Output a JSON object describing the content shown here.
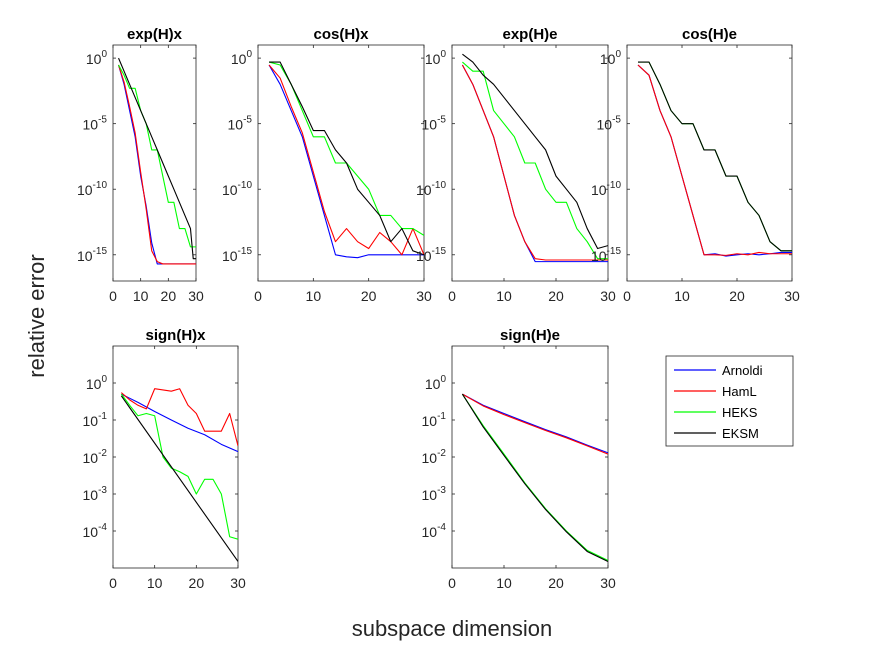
{
  "figure": {
    "ylabel": "relative error",
    "xlabel": "subspace dimension"
  },
  "legend": {
    "entries": [
      {
        "name": "Arnoldi",
        "color": "#0000ff"
      },
      {
        "name": "HamL",
        "color": "#ff0000"
      },
      {
        "name": "HEKS",
        "color": "#00ff00"
      },
      {
        "name": "EKSM",
        "color": "#000000"
      }
    ]
  },
  "chart_data": [
    {
      "type": "line",
      "title": "exp(H)x",
      "yscale": "log",
      "xlim": [
        0,
        30
      ],
      "ylim": [
        1e-17,
        10
      ],
      "xticks": [
        0,
        10,
        20,
        30
      ],
      "yticks": [
        1,
        1e-05,
        1e-10,
        1e-15
      ],
      "ytick_exponents": [
        "0",
        "-5",
        "-10",
        "-15"
      ],
      "series": [
        {
          "name": "Arnoldi",
          "x": [
            2,
            4,
            6,
            8,
            10,
            12,
            14,
            16,
            18,
            20,
            22,
            24,
            26,
            28,
            30
          ],
          "y": [
            0.3,
            0.01,
            0.0001,
            1e-06,
            1e-09,
            5e-12,
            8e-15,
            2e-16,
            2e-16,
            2e-16,
            2e-16,
            2e-16,
            2e-16,
            2e-16,
            2e-16
          ]
        },
        {
          "name": "HamL",
          "x": [
            2,
            4,
            6,
            8,
            10,
            12,
            14,
            16,
            18,
            20,
            22,
            24,
            26,
            28,
            30
          ],
          "y": [
            0.3,
            0.015,
            0.0002,
            2e-06,
            2e-09,
            3e-12,
            2e-15,
            3e-16,
            2e-16,
            2e-16,
            2e-16,
            2e-16,
            2e-16,
            2e-16,
            2e-16
          ]
        },
        {
          "name": "HEKS",
          "x": [
            2,
            4,
            6,
            8,
            10,
            12,
            14,
            16,
            18,
            20,
            22,
            24,
            26,
            28,
            30
          ],
          "y": [
            0.3,
            0.05,
            0.005,
            0.005,
            0.0001,
            1e-05,
            1e-07,
            1e-07,
            1e-09,
            1e-11,
            1e-11,
            1e-13,
            1e-13,
            4e-15,
            4e-15
          ]
        },
        {
          "name": "EKSM",
          "x": [
            2,
            4,
            6,
            8,
            10,
            12,
            14,
            16,
            18,
            20,
            22,
            24,
            26,
            28,
            29,
            30
          ],
          "y": [
            1,
            0.1,
            0.01,
            0.001,
            0.0001,
            1e-05,
            1e-06,
            1e-07,
            1e-08,
            1e-09,
            1e-10,
            1e-11,
            1e-12,
            1e-13,
            5e-16,
            5e-16
          ]
        }
      ]
    },
    {
      "type": "line",
      "title": "cos(H)x",
      "yscale": "log",
      "xlim": [
        0,
        30
      ],
      "ylim": [
        1e-17,
        10
      ],
      "xticks": [
        0,
        10,
        20,
        30
      ],
      "yticks": [
        1,
        1e-05,
        1e-10,
        1e-15
      ],
      "ytick_exponents": [
        "0",
        "-5",
        "-10",
        "-15"
      ],
      "series": [
        {
          "name": "Arnoldi",
          "x": [
            2,
            4,
            6,
            8,
            10,
            12,
            14,
            16,
            18,
            20,
            22,
            24,
            26,
            28,
            30
          ],
          "y": [
            0.3,
            0.01,
            0.0001,
            1e-06,
            1e-09,
            1e-12,
            1e-15,
            7e-16,
            6e-16,
            1e-15,
            1e-15,
            1e-15,
            1e-15,
            1e-15,
            1e-15
          ]
        },
        {
          "name": "HamL",
          "x": [
            2,
            4,
            6,
            8,
            10,
            12,
            14,
            16,
            18,
            20,
            22,
            24,
            26,
            28,
            30
          ],
          "y": [
            0.3,
            0.03,
            0.0002,
            2e-06,
            2e-09,
            2e-12,
            1e-14,
            1e-13,
            1e-14,
            3e-15,
            5e-14,
            1e-14,
            1e-15,
            1e-13,
            1e-15
          ]
        },
        {
          "name": "HEKS",
          "x": [
            2,
            4,
            6,
            8,
            10,
            12,
            14,
            16,
            18,
            20,
            22,
            24,
            26,
            28,
            30
          ],
          "y": [
            0.5,
            0.3,
            0.01,
            0.0001,
            1e-06,
            1e-06,
            1e-08,
            1e-08,
            1e-09,
            1e-10,
            1e-12,
            1e-12,
            1e-13,
            1e-13,
            3e-14
          ]
        },
        {
          "name": "EKSM",
          "x": [
            2,
            4,
            6,
            8,
            10,
            12,
            14,
            16,
            18,
            20,
            22,
            24,
            26,
            28,
            30
          ],
          "y": [
            0.5,
            0.5,
            0.01,
            0.0002,
            3e-06,
            3e-06,
            1e-07,
            1e-08,
            1e-10,
            1e-11,
            1e-12,
            1e-14,
            1e-13,
            2e-15,
            1e-15
          ]
        }
      ]
    },
    {
      "type": "line",
      "title": "exp(H)e",
      "yscale": "log",
      "xlim": [
        0,
        30
      ],
      "ylim": [
        1e-17,
        10
      ],
      "xticks": [
        0,
        10,
        20,
        30
      ],
      "yticks": [
        1,
        1e-05,
        1e-10,
        1e-15
      ],
      "ytick_exponents": [
        "0",
        "-5",
        "-10",
        "-15"
      ],
      "series": [
        {
          "name": "Arnoldi",
          "x": [
            2,
            4,
            6,
            8,
            10,
            12,
            14,
            16,
            18,
            20,
            22,
            24,
            26,
            28,
            30
          ],
          "y": [
            0.3,
            0.01,
            0.0001,
            1e-06,
            1e-09,
            1e-12,
            1e-14,
            3e-16,
            3e-16,
            3e-16,
            3e-16,
            3e-16,
            3e-16,
            3e-16,
            3e-16
          ]
        },
        {
          "name": "HamL",
          "x": [
            2,
            4,
            6,
            8,
            10,
            12,
            14,
            16,
            18,
            20,
            22,
            24,
            26,
            28,
            30
          ],
          "y": [
            0.3,
            0.01,
            0.0001,
            1e-06,
            1e-09,
            1e-12,
            1e-14,
            5e-16,
            4e-16,
            4e-16,
            4e-16,
            4e-16,
            4e-16,
            4e-16,
            4e-16
          ]
        },
        {
          "name": "HEKS",
          "x": [
            2,
            4,
            6,
            8,
            10,
            12,
            14,
            16,
            18,
            20,
            22,
            24,
            26,
            28,
            30
          ],
          "y": [
            0.5,
            0.1,
            0.1,
            0.0001,
            1e-05,
            1e-06,
            1e-08,
            1e-08,
            1e-10,
            1e-11,
            1e-11,
            1e-13,
            1e-14,
            5e-16,
            5e-16
          ]
        },
        {
          "name": "EKSM",
          "x": [
            2,
            4,
            6,
            8,
            10,
            12,
            14,
            16,
            18,
            20,
            22,
            24,
            26,
            28,
            30
          ],
          "y": [
            2,
            0.5,
            0.05,
            0.01,
            0.001,
            0.0001,
            1e-05,
            1e-06,
            1e-07,
            1e-09,
            1e-10,
            1e-11,
            1e-13,
            3e-15,
            5e-15
          ]
        }
      ]
    },
    {
      "type": "line",
      "title": "cos(H)e",
      "yscale": "log",
      "xlim": [
        0,
        30
      ],
      "ylim": [
        1e-17,
        10
      ],
      "xticks": [
        0,
        10,
        20,
        30
      ],
      "yticks": [
        1,
        1e-05,
        1e-10,
        1e-15
      ],
      "ytick_exponents": [
        "0",
        "-5",
        "-10",
        "-15"
      ],
      "series": [
        {
          "name": "Arnoldi",
          "x": [
            2,
            4,
            6,
            8,
            10,
            12,
            14,
            16,
            18,
            20,
            22,
            24,
            26,
            28,
            30
          ],
          "y": [
            0.3,
            0.05,
            0.0001,
            1e-06,
            1e-09,
            1e-12,
            1e-15,
            1.2e-15,
            8e-16,
            1e-15,
            1.2e-15,
            1e-15,
            1.2e-15,
            1.5e-15,
            1.5e-15
          ]
        },
        {
          "name": "HamL",
          "x": [
            2,
            4,
            6,
            8,
            10,
            12,
            14,
            16,
            18,
            20,
            22,
            24,
            26,
            28,
            30
          ],
          "y": [
            0.3,
            0.05,
            0.0001,
            1e-06,
            1e-09,
            1e-12,
            1e-15,
            1e-15,
            9e-16,
            1.2e-15,
            1e-15,
            1.5e-15,
            1.2e-15,
            1.2e-15,
            1.2e-15
          ]
        },
        {
          "name": "HEKS",
          "x": [
            2,
            4,
            6,
            8,
            10,
            12,
            14,
            16,
            18,
            20,
            22,
            24,
            26,
            28,
            30
          ],
          "y": [
            0.5,
            0.5,
            0.01,
            0.0001,
            1e-05,
            1e-05,
            1e-07,
            1e-07,
            1e-09,
            1e-09,
            1e-11,
            1e-12,
            1e-14,
            2e-15,
            2e-15
          ]
        },
        {
          "name": "EKSM",
          "x": [
            2,
            4,
            6,
            8,
            10,
            12,
            14,
            16,
            18,
            20,
            22,
            24,
            26,
            28,
            30
          ],
          "y": [
            0.5,
            0.5,
            0.01,
            0.0001,
            1e-05,
            1e-05,
            1e-07,
            1e-07,
            1e-09,
            1e-09,
            1e-11,
            1e-12,
            1e-14,
            2e-15,
            2e-15
          ]
        }
      ]
    },
    {
      "type": "line",
      "title": "sign(H)x",
      "yscale": "log",
      "xlim": [
        0,
        30
      ],
      "ylim": [
        1e-05,
        10
      ],
      "xticks": [
        0,
        10,
        20,
        30
      ],
      "yticks": [
        1,
        0.1,
        0.01,
        0.001,
        0.0001
      ],
      "ytick_labels": [
        "10",
        "10",
        "10",
        "10",
        "10"
      ],
      "ytick_exponents": [
        "0",
        "-1",
        "-2",
        "-3",
        "-4"
      ],
      "series": [
        {
          "name": "Arnoldi",
          "x": [
            2,
            6,
            10,
            14,
            18,
            22,
            26,
            30
          ],
          "y": [
            0.5,
            0.3,
            0.17,
            0.1,
            0.06,
            0.04,
            0.022,
            0.014
          ]
        },
        {
          "name": "HamL",
          "x": [
            2,
            4,
            6,
            8,
            10,
            12,
            14,
            16,
            18,
            20,
            22,
            24,
            26,
            28,
            30
          ],
          "y": [
            0.55,
            0.35,
            0.25,
            0.2,
            0.7,
            0.65,
            0.6,
            0.7,
            0.25,
            0.15,
            0.05,
            0.05,
            0.05,
            0.15,
            0.02
          ]
        },
        {
          "name": "HEKS",
          "x": [
            2,
            4,
            6,
            8,
            10,
            12,
            14,
            16,
            18,
            20,
            22,
            24,
            26,
            28,
            30
          ],
          "y": [
            0.5,
            0.25,
            0.13,
            0.15,
            0.13,
            0.01,
            0.005,
            0.004,
            0.003,
            0.001,
            0.0025,
            0.0025,
            0.001,
            7e-05,
            6e-05
          ]
        },
        {
          "name": "EKSM",
          "x": [
            2,
            30
          ],
          "y": [
            0.45,
            1.5e-05
          ]
        }
      ]
    },
    {
      "type": "line",
      "title": "sign(H)e",
      "yscale": "log",
      "xlim": [
        0,
        30
      ],
      "ylim": [
        1e-05,
        10
      ],
      "xticks": [
        0,
        10,
        20,
        30
      ],
      "yticks": [
        1,
        0.1,
        0.01,
        0.001,
        0.0001
      ],
      "ytick_exponents": [
        "0",
        "-1",
        "-2",
        "-3",
        "-4"
      ],
      "series": [
        {
          "name": "Arnoldi",
          "x": [
            2,
            6,
            10,
            14,
            18,
            22,
            26,
            30
          ],
          "y": [
            0.5,
            0.25,
            0.15,
            0.09,
            0.055,
            0.035,
            0.021,
            0.013
          ]
        },
        {
          "name": "HamL",
          "x": [
            2,
            6,
            10,
            14,
            18,
            22,
            26,
            30
          ],
          "y": [
            0.5,
            0.24,
            0.14,
            0.085,
            0.052,
            0.033,
            0.02,
            0.012
          ]
        },
        {
          "name": "HEKS",
          "x": [
            2,
            6,
            10,
            14,
            18,
            22,
            26,
            30
          ],
          "y": [
            0.5,
            0.07,
            0.012,
            0.002,
            0.0004,
            0.0001,
            3e-05,
            1.6e-05
          ]
        },
        {
          "name": "EKSM",
          "x": [
            2,
            6,
            10,
            14,
            18,
            22,
            26,
            30
          ],
          "y": [
            0.5,
            0.065,
            0.011,
            0.0019,
            0.00038,
            9.5e-05,
            2.8e-05,
            1.5e-05
          ]
        }
      ]
    }
  ]
}
